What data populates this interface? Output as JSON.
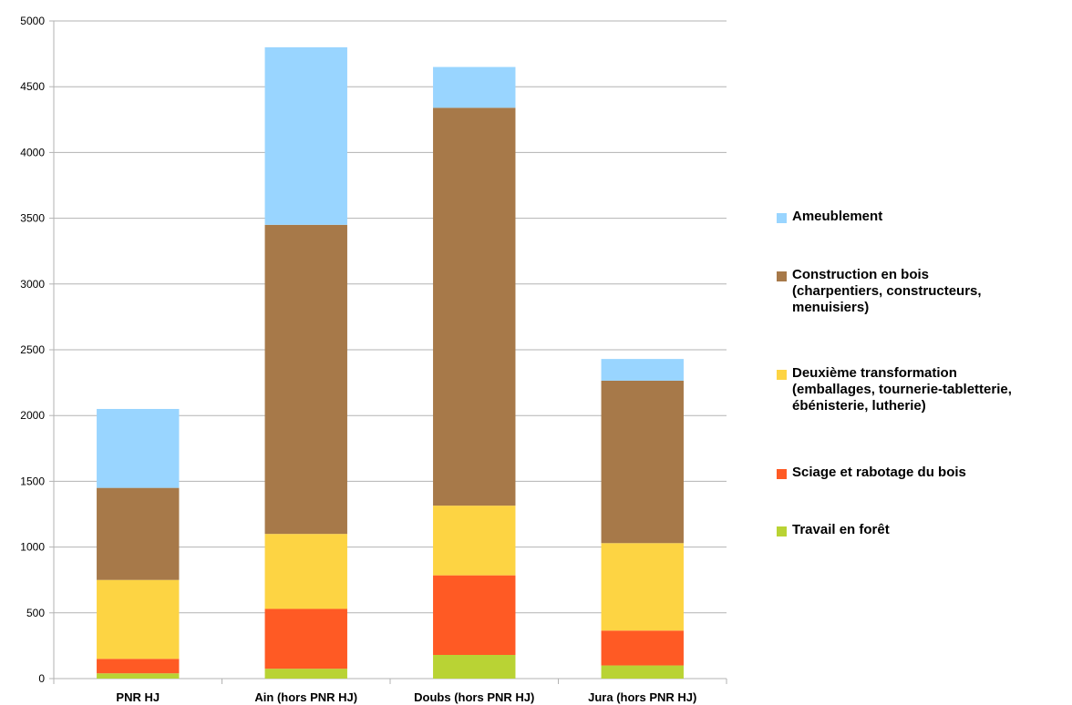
{
  "chart_data": {
    "type": "bar",
    "stacked": true,
    "categories": [
      "PNR HJ",
      "Ain (hors PNR HJ)",
      "Doubs (hors PNR HJ)",
      "Jura (hors PNR HJ)"
    ],
    "series": [
      {
        "name": "Travail en forêt",
        "color": "#b9d334",
        "values": [
          40,
          75,
          180,
          100
        ]
      },
      {
        "name": "Sciage et rabotage du bois",
        "color": "#ff5a24",
        "values": [
          110,
          455,
          605,
          265
        ]
      },
      {
        "name": "Deuxième transformation\n(emballages, tournerie-tabletterie,\nébénisterie, lutherie)",
        "color": "#fdd443",
        "values": [
          600,
          570,
          530,
          665
        ]
      },
      {
        "name": "Construction en bois\n(charpentiers, constructeurs,\nmenuisiers)",
        "color": "#a77949",
        "values": [
          700,
          2350,
          3025,
          1235
        ]
      },
      {
        "name": "Ameublement",
        "color": "#99d5ff",
        "values": [
          600,
          1350,
          310,
          165
        ]
      }
    ],
    "legend_order": [
      4,
      3,
      2,
      1,
      0
    ],
    "yticks": [
      0,
      500,
      1000,
      1500,
      2000,
      2500,
      3000,
      3500,
      4000,
      4500,
      5000
    ],
    "ylim": [
      0,
      5000
    ],
    "grid": true,
    "legend_position": "right",
    "title": "",
    "xlabel": "",
    "ylabel": ""
  }
}
